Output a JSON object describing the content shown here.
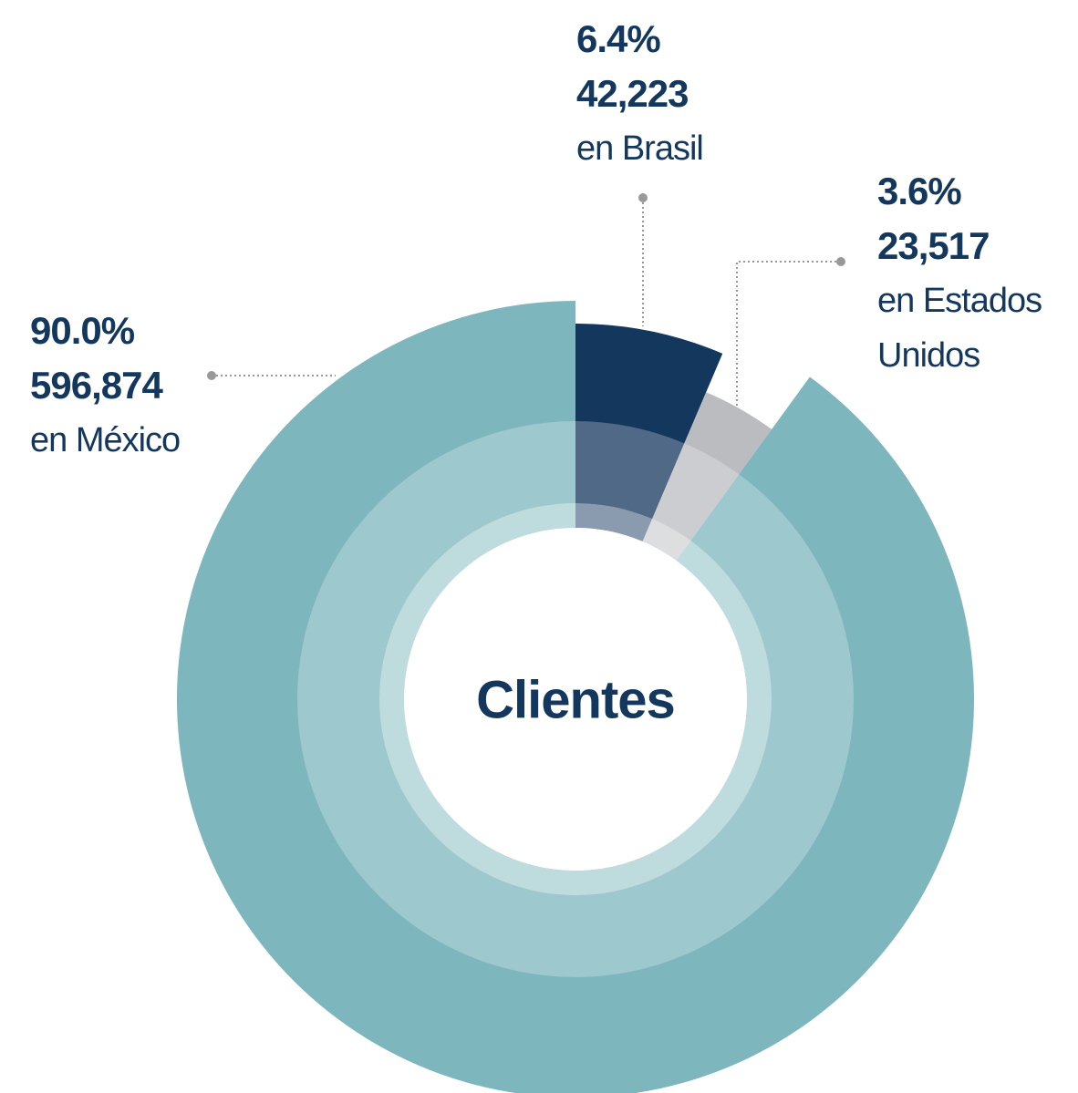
{
  "chart_data": {
    "type": "pie",
    "title": "Clientes",
    "categories": [
      "en México",
      "en Brasil",
      "en Estados Unidos"
    ],
    "values": [
      90.0,
      6.4,
      3.6
    ],
    "value_labels": [
      "90.0%",
      "6.4%",
      "3.6%"
    ],
    "counts": [
      596874,
      42223,
      23517
    ],
    "count_labels": [
      "596,874",
      "42,223",
      "23,517"
    ],
    "colors": [
      "#7db6bd",
      "#14375e",
      "#bbbcc0"
    ]
  }
}
